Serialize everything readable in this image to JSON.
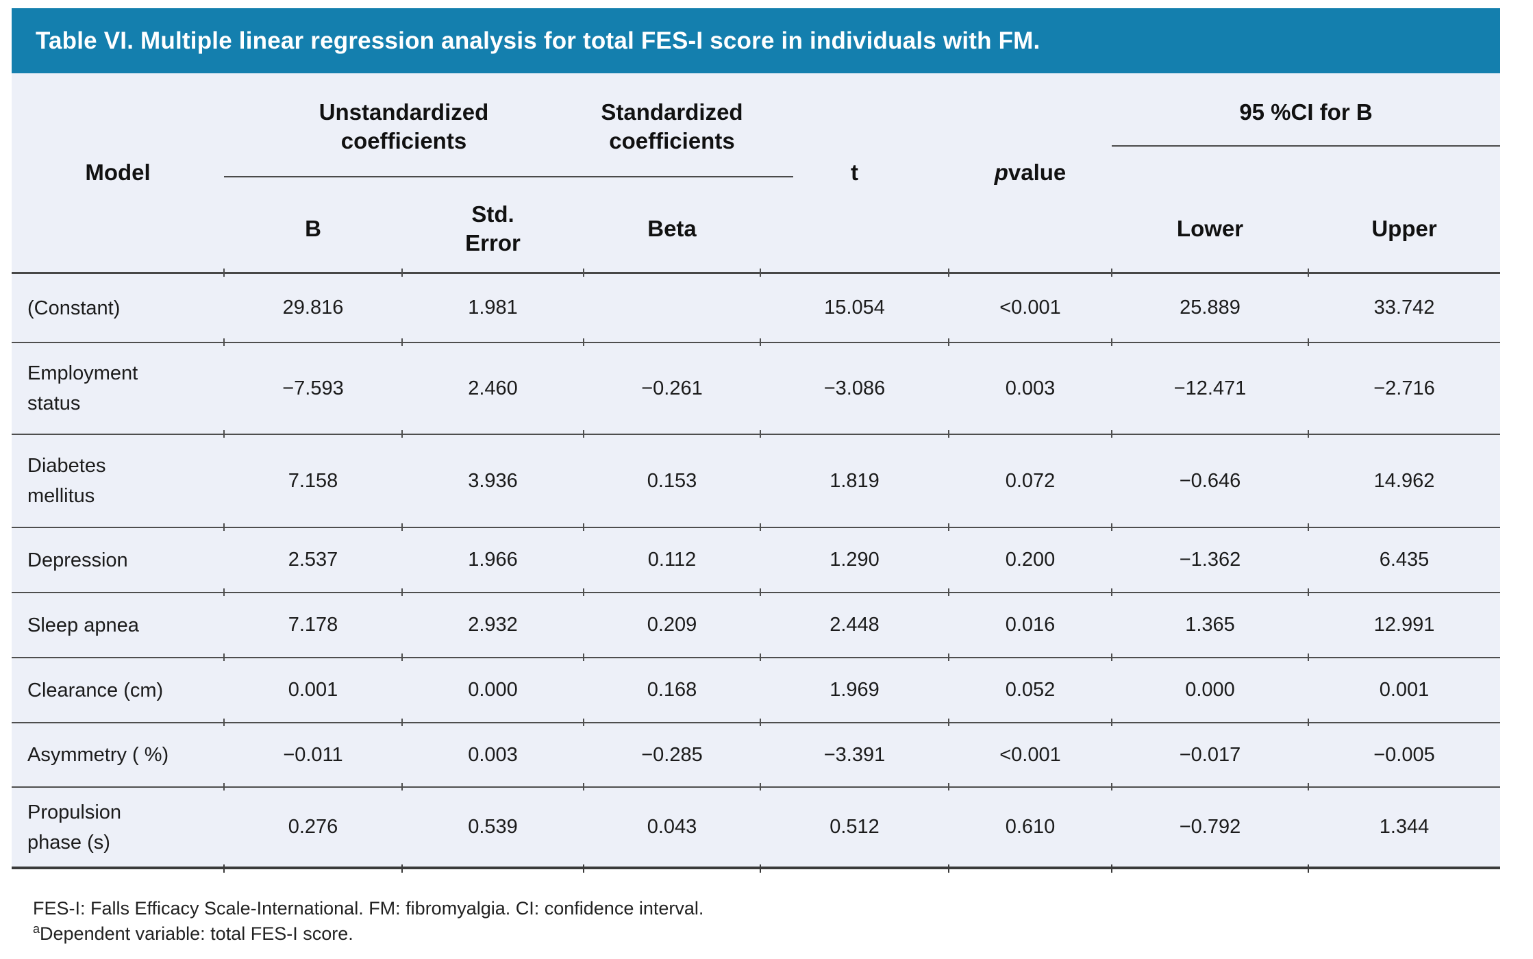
{
  "title": "Table VI. Multiple linear regression analysis for total FES-I score in individuals with FM.",
  "colors": {
    "title_bar": "#147fae",
    "table_background": "#edf0f8",
    "separator_line": "#4e4e4e",
    "text": "#1b1b1b"
  },
  "header": {
    "model": "Model",
    "group_unstandardized": "Unstandardized\ncoefficients",
    "group_standardized": "Standardized\ncoefficients",
    "group_ci": "95 %CI for B",
    "col_b": "B",
    "col_std_error": "Std.\nError",
    "col_beta": "Beta",
    "col_t": "t",
    "p_italic": "p",
    "p_rest": " value",
    "col_lower": "Lower",
    "col_upper": "Upper"
  },
  "rows": [
    {
      "model": "(Constant)",
      "b": "29.816",
      "std_error": "1.981",
      "beta": "",
      "t": "15.054",
      "p": "<0.001",
      "lower": "25.889",
      "upper": "33.742"
    },
    {
      "model": "Employment\nstatus",
      "b": "−7.593",
      "std_error": "2.460",
      "beta": "−0.261",
      "t": "−3.086",
      "p": "0.003",
      "lower": "−12.471",
      "upper": "−2.716"
    },
    {
      "model": "Diabetes\nmellitus",
      "b": "7.158",
      "std_error": "3.936",
      "beta": "0.153",
      "t": "1.819",
      "p": "0.072",
      "lower": "−0.646",
      "upper": "14.962"
    },
    {
      "model": "Depression",
      "b": "2.537",
      "std_error": "1.966",
      "beta": "0.112",
      "t": "1.290",
      "p": "0.200",
      "lower": "−1.362",
      "upper": "6.435"
    },
    {
      "model": "Sleep apnea",
      "b": "7.178",
      "std_error": "2.932",
      "beta": "0.209",
      "t": "2.448",
      "p": "0.016",
      "lower": "1.365",
      "upper": "12.991"
    },
    {
      "model": "Clearance (cm)",
      "b": "0.001",
      "std_error": "0.000",
      "beta": "0.168",
      "t": "1.969",
      "p": "0.052",
      "lower": "0.000",
      "upper": "0.001"
    },
    {
      "model": "Asymmetry ( %)",
      "b": "−0.011",
      "std_error": "0.003",
      "beta": "−0.285",
      "t": "−3.391",
      "p": "<0.001",
      "lower": "−0.017",
      "upper": "−0.005"
    },
    {
      "model": "Propulsion\nphase (s)",
      "b": "0.276",
      "std_error": "0.539",
      "beta": "0.043",
      "t": "0.512",
      "p": "0.610",
      "lower": "−0.792",
      "upper": "1.344"
    }
  ],
  "footnotes": {
    "line1": "FES-I: Falls Efficacy Scale-International. FM: fibromyalgia. CI: confidence interval.",
    "sup": "a",
    "line2": "Dependent variable: total FES-I score."
  }
}
